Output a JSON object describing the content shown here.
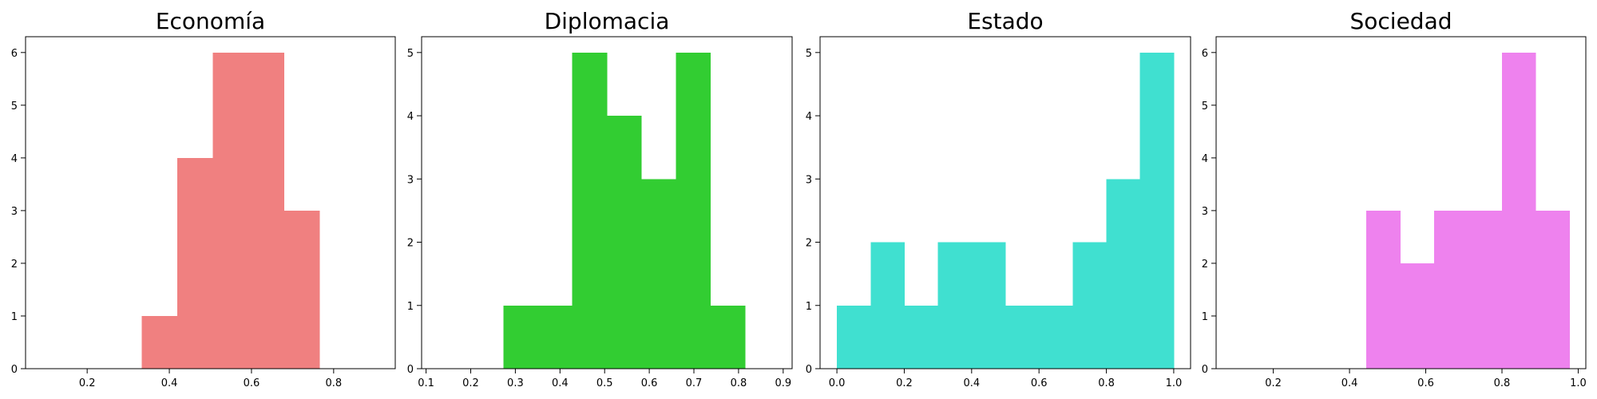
{
  "chart_data": [
    {
      "type": "bar",
      "title": "Economía",
      "color": "#f08080",
      "bin_edges": [
        0.333,
        0.4195,
        0.506,
        0.5925,
        0.679,
        0.7655
      ],
      "values": [
        1,
        4,
        6,
        6,
        3
      ],
      "xlim": [
        0.05,
        0.95
      ],
      "ylim": [
        0,
        6.3
      ],
      "xticks": [
        0.2,
        0.4,
        0.6,
        0.8
      ],
      "xtick_labels": [
        "0.2",
        "0.4",
        "0.6",
        "0.8"
      ],
      "yticks": [
        0,
        1,
        2,
        3,
        4,
        5,
        6
      ],
      "ytick_labels": [
        "0",
        "1",
        "2",
        "3",
        "4",
        "5",
        "6"
      ]
    },
    {
      "type": "bar",
      "title": "Diplomacia",
      "color": "#32cd32",
      "bin_edges": [
        0.273,
        0.3503,
        0.4276,
        0.5049,
        0.5822,
        0.6595,
        0.7368,
        0.8141
      ],
      "values": [
        1,
        1,
        5,
        4,
        3,
        5,
        1
      ],
      "xlim": [
        0.09,
        0.92
      ],
      "ylim": [
        0,
        5.25
      ],
      "xticks": [
        0.1,
        0.2,
        0.3,
        0.4,
        0.5,
        0.6,
        0.7,
        0.8,
        0.9
      ],
      "xtick_labels": [
        "0.1",
        "0.2",
        "0.3",
        "0.4",
        "0.5",
        "0.6",
        "0.7",
        "0.8",
        "0.9"
      ],
      "yticks": [
        0,
        1,
        2,
        3,
        4,
        5
      ],
      "ytick_labels": [
        "0",
        "1",
        "2",
        "3",
        "4",
        "5"
      ]
    },
    {
      "type": "bar",
      "title": "Estado",
      "color": "#40e0d0",
      "bin_edges": [
        0.0,
        0.1,
        0.2,
        0.3,
        0.4,
        0.5,
        0.6,
        0.7,
        0.8,
        0.9,
        1.0
      ],
      "values": [
        1,
        2,
        1,
        2,
        2,
        1,
        1,
        2,
        3,
        5
      ],
      "xlim": [
        -0.05,
        1.05
      ],
      "ylim": [
        0,
        5.25
      ],
      "xticks": [
        0.0,
        0.2,
        0.4,
        0.6,
        0.8,
        1.0
      ],
      "xtick_labels": [
        "0.0",
        "0.2",
        "0.4",
        "0.6",
        "0.8",
        "1.0"
      ],
      "yticks": [
        0,
        1,
        2,
        3,
        4,
        5
      ],
      "ytick_labels": [
        "0",
        "1",
        "2",
        "3",
        "4",
        "5"
      ]
    },
    {
      "type": "bar",
      "title": "Sociedad",
      "color": "#ee82ee",
      "bin_edges": [
        0.444,
        0.5329,
        0.6218,
        0.7107,
        0.7996,
        0.8885,
        0.9774
      ],
      "values": [
        3,
        2,
        3,
        3,
        6,
        3
      ],
      "xlim": [
        0.05,
        1.02
      ],
      "ylim": [
        0,
        6.3
      ],
      "xticks": [
        0.2,
        0.4,
        0.6,
        0.8,
        1.0
      ],
      "xtick_labels": [
        "0.2",
        "0.4",
        "0.6",
        "0.8",
        "1.0"
      ],
      "yticks": [
        0,
        1,
        2,
        3,
        4,
        5,
        6
      ],
      "ytick_labels": [
        "0",
        "1",
        "2",
        "3",
        "4",
        "5",
        "6"
      ]
    }
  ]
}
